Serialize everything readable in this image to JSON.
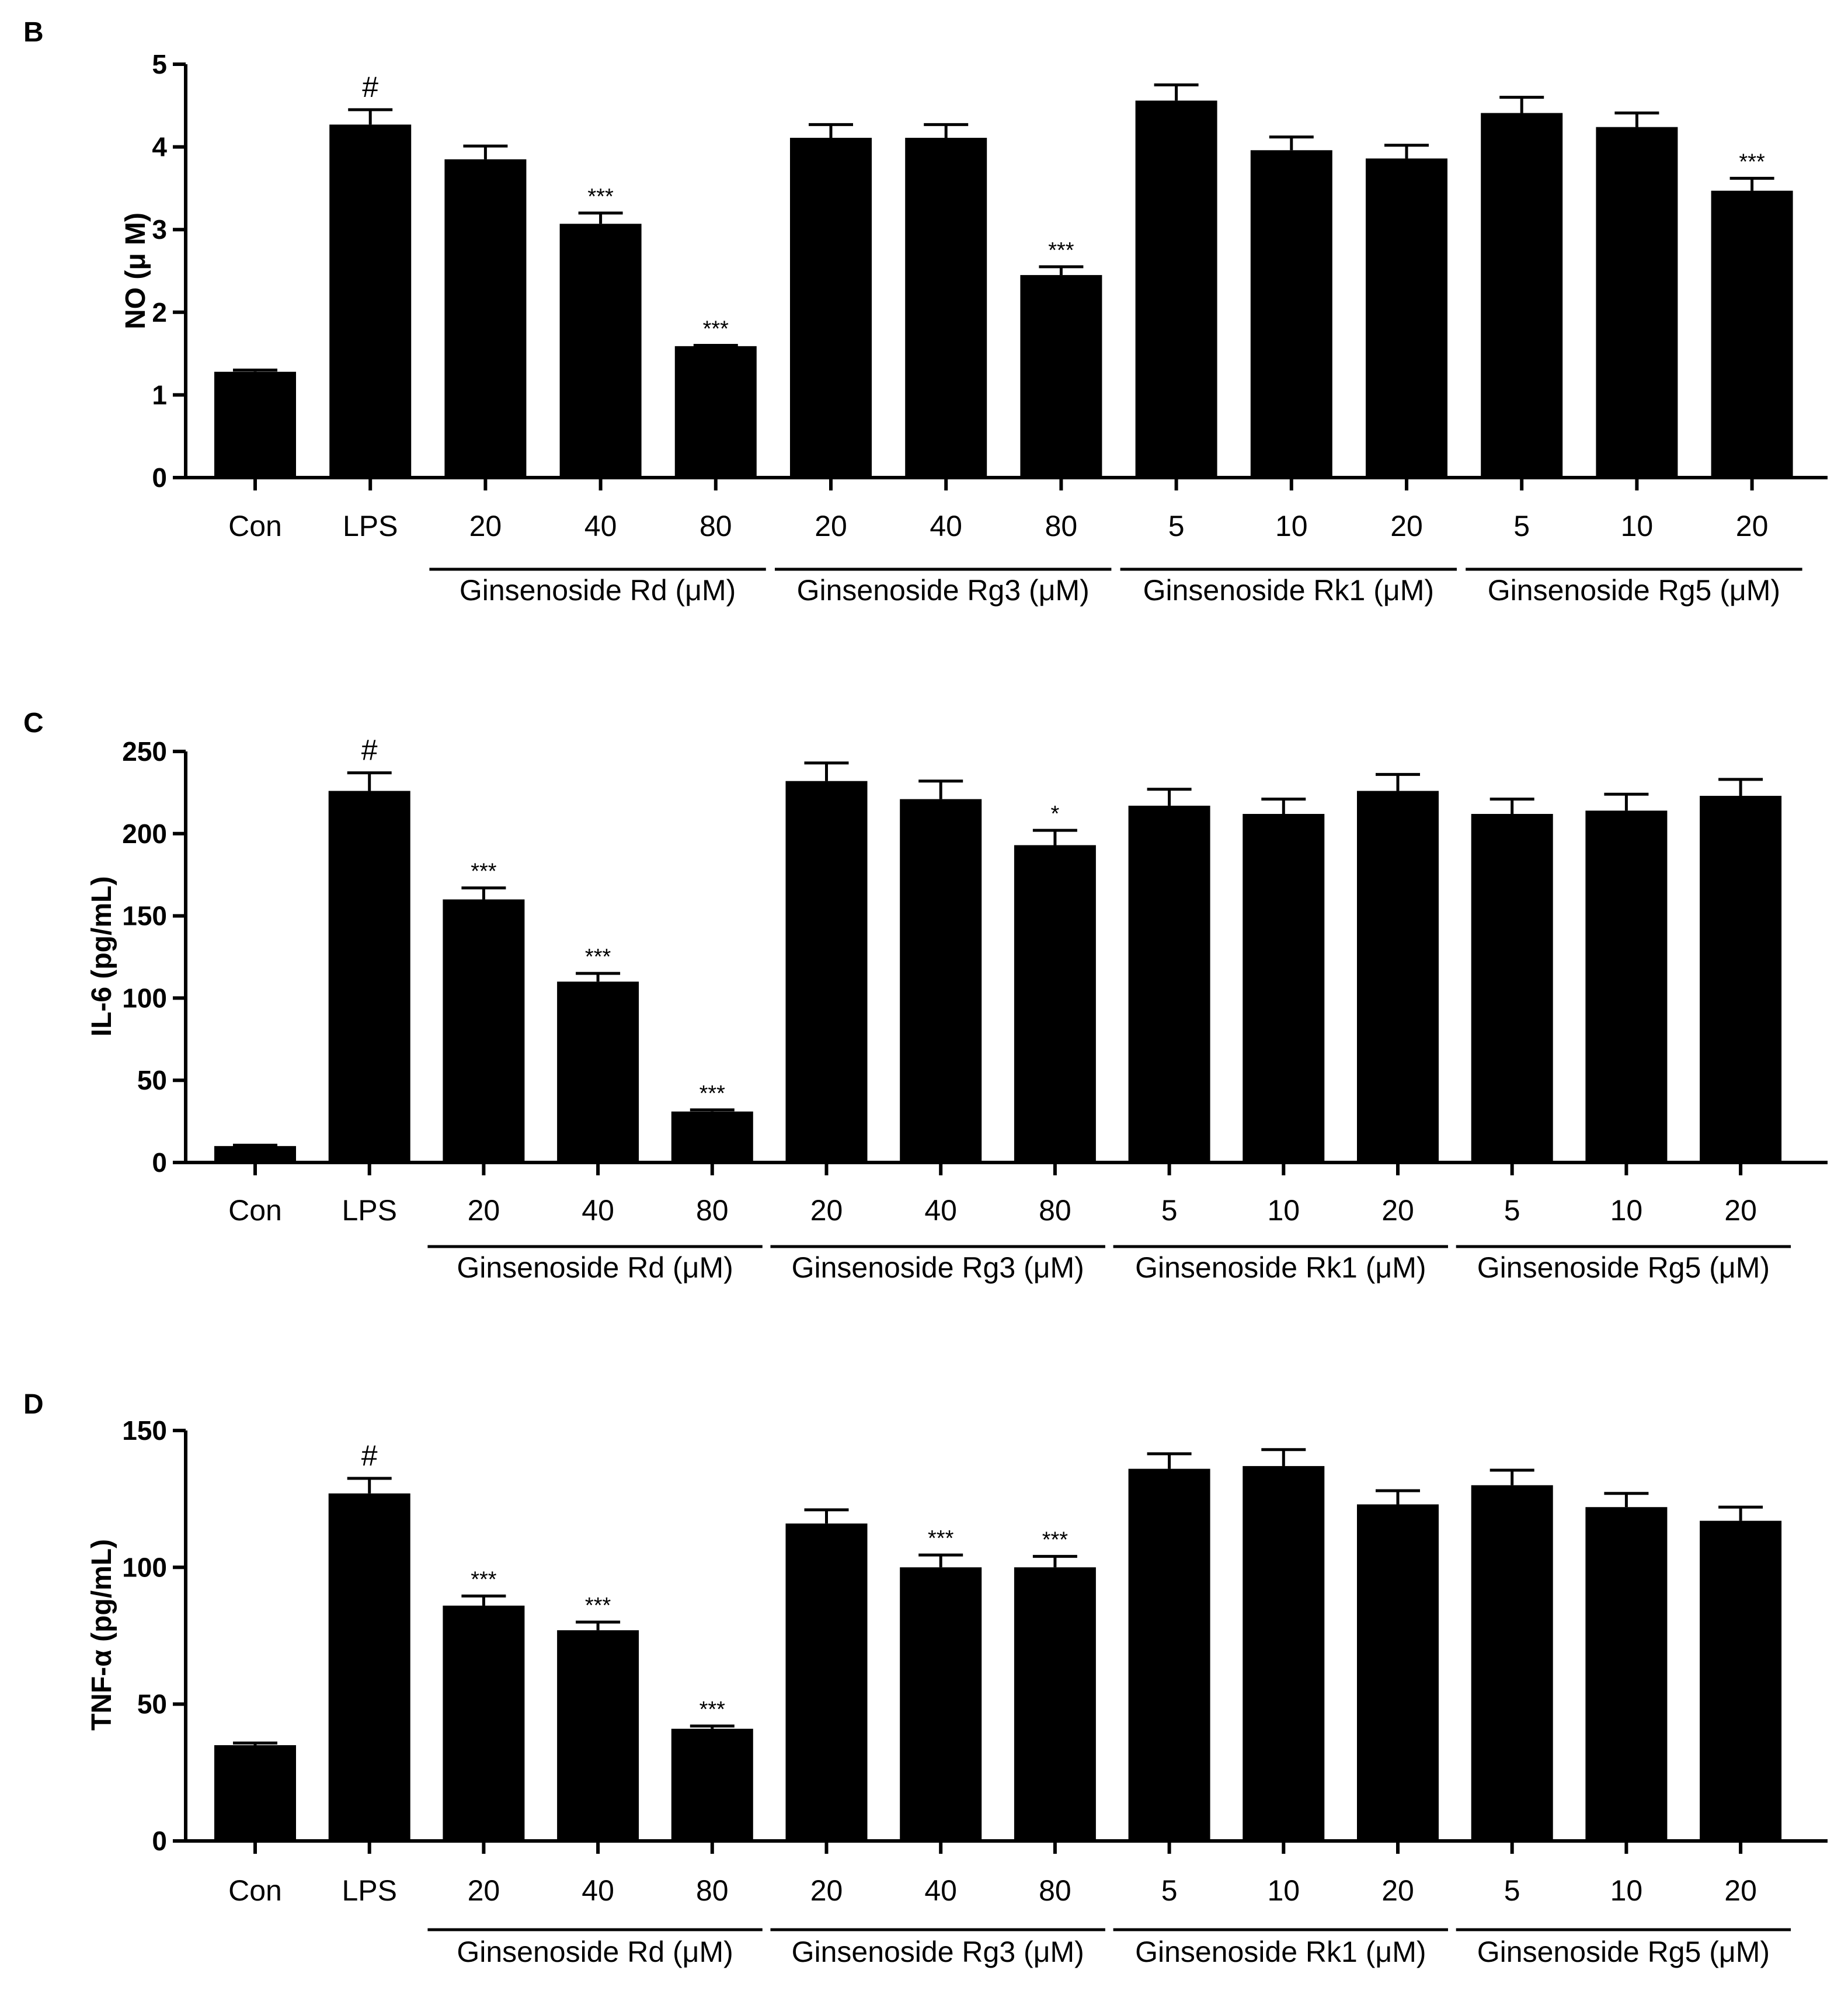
{
  "categories": [
    "Con",
    "LPS",
    "20",
    "40",
    "80",
    "20",
    "40",
    "80",
    "5",
    "10",
    "20",
    "5",
    "10",
    "20"
  ],
  "groups": [
    {
      "label": "Ginsenoside Rd (μM)",
      "start": 2,
      "end": 4
    },
    {
      "label": "Ginsenoside Rg3 (μM)",
      "start": 5,
      "end": 7
    },
    {
      "label": "Ginsenoside Rk1 (μM)",
      "start": 8,
      "end": 10
    },
    {
      "label": "Ginsenoside Rg5 (μM)",
      "start": 11,
      "end": 13
    }
  ],
  "colors": {
    "bar": "#000000",
    "axis": "#000000",
    "background": "#ffffff"
  },
  "chart_data": [
    {
      "type": "bar",
      "panel": "B",
      "ylabel": "NO (μ M)",
      "ylim": [
        0,
        5
      ],
      "yticks": [
        0,
        1,
        2,
        3,
        4,
        5
      ],
      "values": [
        1.28,
        4.27,
        3.85,
        3.07,
        1.59,
        4.11,
        4.11,
        2.45,
        4.56,
        3.96,
        3.86,
        4.41,
        4.24,
        3.47
      ],
      "errors": [
        0.02,
        0.18,
        0.16,
        0.13,
        0.01,
        0.16,
        0.16,
        0.1,
        0.19,
        0.16,
        0.16,
        0.19,
        0.17,
        0.15
      ],
      "annotations": [
        "",
        "#",
        "",
        "***",
        "***",
        "",
        "",
        "***",
        "",
        "",
        "",
        "",
        "",
        "***"
      ]
    },
    {
      "type": "bar",
      "panel": "C",
      "ylabel": "IL-6 (pg/mL)",
      "ylim": [
        0,
        250
      ],
      "yticks": [
        0,
        50,
        100,
        150,
        200,
        250
      ],
      "values": [
        10,
        226,
        160,
        110,
        31,
        232,
        221,
        193,
        217,
        212,
        226,
        212,
        214,
        223
      ],
      "errors": [
        0.5,
        11,
        7,
        5,
        1,
        11,
        11,
        9,
        10,
        9,
        10,
        9,
        10,
        10
      ],
      "annotations": [
        "",
        "#",
        "***",
        "***",
        "***",
        "",
        "",
        "*",
        "",
        "",
        "",
        "",
        "",
        ""
      ]
    },
    {
      "type": "bar",
      "panel": "D",
      "ylabel": "TNF-α  (pg/mL)",
      "ylim": [
        0,
        150
      ],
      "yticks": [
        0,
        50,
        100,
        150
      ],
      "values": [
        35,
        127,
        86,
        77,
        41,
        116,
        100,
        100,
        136,
        137,
        123,
        130,
        122,
        117
      ],
      "errors": [
        0.8,
        5.5,
        3.5,
        3,
        1,
        5,
        4.5,
        4,
        5.5,
        6,
        5,
        5.5,
        5,
        5
      ],
      "annotations": [
        "",
        "#",
        "***",
        "***",
        "***",
        "",
        "***",
        "***",
        "",
        "",
        "",
        "",
        "",
        ""
      ]
    }
  ]
}
